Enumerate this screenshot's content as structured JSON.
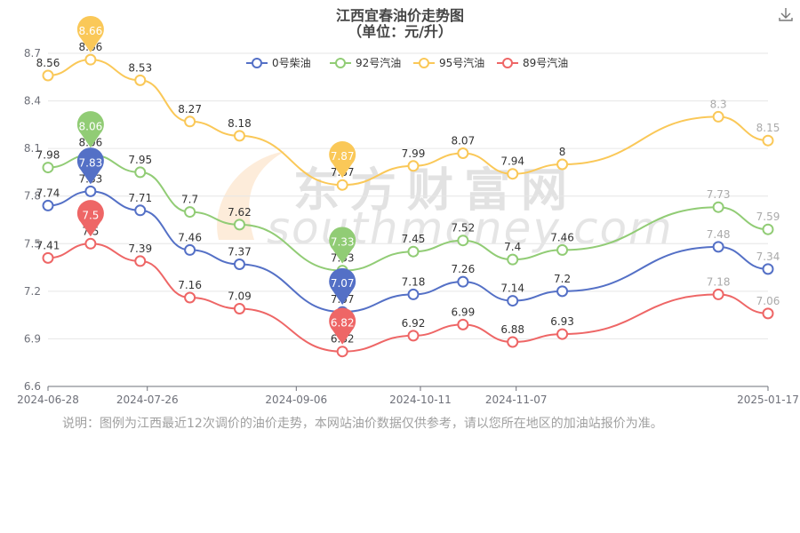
{
  "title": "江西宜春油价走势图",
  "subtitle": "（单位：元/升）",
  "note": "说明：图例为江西最近12次调价的油价走势，本网站油价数据仅供参考，请以您所在地区的加油站报价为准。",
  "watermark": {
    "name": "东方财富网",
    "url": "southmoney.com"
  },
  "toolbar": {
    "download_icon": "download-icon"
  },
  "chart_data": {
    "type": "line",
    "x": [
      "2024-06-28",
      "2024-07-10",
      "2024-07-24",
      "2024-08-07",
      "2024-08-21",
      "2024-09-19",
      "2024-10-09",
      "2024-10-23",
      "2024-11-06",
      "2024-11-20",
      "2025-01-03",
      "2025-01-17"
    ],
    "xticks": [
      "2024-06-28",
      "2024-07-26",
      "2024-09-06",
      "2024-10-11",
      "2024-11-07",
      "2025-01-17"
    ],
    "ylim": [
      6.6,
      8.7
    ],
    "yticks": [
      "6.6",
      "6.9",
      "7.2",
      "7.5",
      "7.8",
      "8.1",
      "8.4",
      "8.7"
    ],
    "legend_position": "top",
    "series": [
      {
        "name": "0号柴油",
        "color": "#5470c6",
        "values": [
          7.74,
          7.83,
          7.71,
          7.46,
          7.37,
          7.07,
          7.18,
          7.26,
          7.14,
          7.2,
          7.48,
          7.34
        ],
        "max_label": "7.83",
        "min_label": "7.07"
      },
      {
        "name": "92号汽油",
        "color": "#91cc75",
        "values": [
          7.98,
          8.06,
          7.95,
          7.7,
          7.62,
          7.33,
          7.45,
          7.52,
          7.4,
          7.46,
          7.73,
          7.59
        ],
        "max_label": "8.06",
        "min_label": "7.33"
      },
      {
        "name": "95号汽油",
        "color": "#fac858",
        "values": [
          8.56,
          8.66,
          8.53,
          8.27,
          8.18,
          7.87,
          7.99,
          8.07,
          7.94,
          8.0,
          8.3,
          8.15
        ],
        "max_label": "8.66",
        "min_label": "7.87"
      },
      {
        "name": "89号汽油",
        "color": "#ee6666",
        "values": [
          7.41,
          7.5,
          7.39,
          7.16,
          7.09,
          6.82,
          6.92,
          6.99,
          6.88,
          6.93,
          7.18,
          7.06
        ],
        "max_label": "7.5",
        "min_label": "6.82"
      }
    ]
  }
}
